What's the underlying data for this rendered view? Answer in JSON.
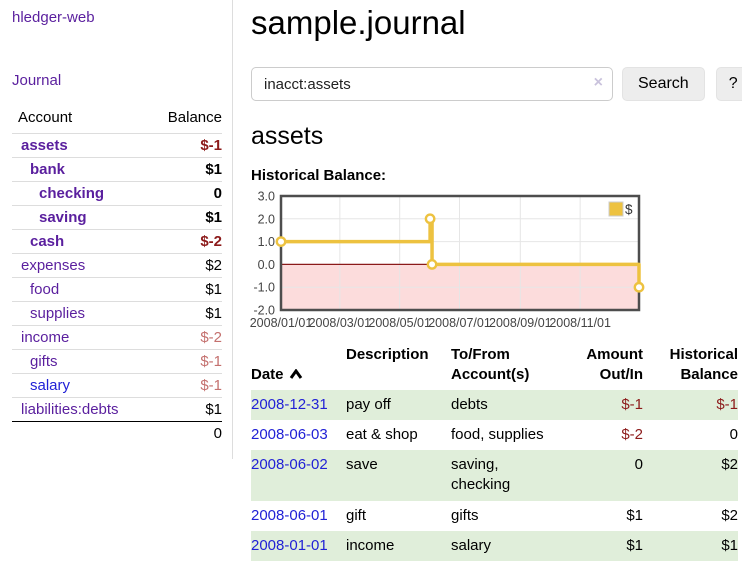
{
  "app": {
    "brand": "hledger-web",
    "nav_journal": "Journal"
  },
  "colors": {
    "link_purple": "#5a1f9e",
    "link_blue": "#2121d6",
    "negative_strong": "#8c1a1a",
    "negative_soft": "#c4706e",
    "row_stripe_green": "#e0eeda"
  },
  "icons": {
    "clear_search": "×",
    "sort_ascending": "chevron-up",
    "legend_swatch": "gold-square"
  },
  "sidebar": {
    "header": {
      "account": "Account",
      "balance": "Balance"
    },
    "accounts": [
      {
        "name": "assets",
        "level": 0,
        "bold": true,
        "balance": "$-1",
        "balance_style": "neg-strong"
      },
      {
        "name": "bank",
        "level": 1,
        "bold": true,
        "balance": "$1",
        "balance_style": ""
      },
      {
        "name": "checking",
        "level": 2,
        "bold": true,
        "balance": "0",
        "balance_style": ""
      },
      {
        "name": "saving",
        "level": 2,
        "bold": true,
        "balance": "$1",
        "balance_style": ""
      },
      {
        "name": "cash",
        "level": 1,
        "bold": true,
        "balance": "$-2",
        "balance_style": "neg-strong"
      },
      {
        "name": "expenses",
        "level": 0,
        "bold": false,
        "balance": "$2",
        "balance_style": ""
      },
      {
        "name": "food",
        "level": 1,
        "bold": false,
        "balance": "$1",
        "balance_style": ""
      },
      {
        "name": "supplies",
        "level": 1,
        "bold": false,
        "balance": "$1",
        "balance_style": ""
      },
      {
        "name": "income",
        "level": 0,
        "bold": false,
        "balance": "$-2",
        "balance_style": "neg-soft"
      },
      {
        "name": "gifts",
        "level": 1,
        "bold": false,
        "balance": "$-1",
        "balance_style": "neg-soft"
      },
      {
        "name": "salary",
        "level": 1,
        "bold": false,
        "link_style": "blue",
        "balance": "$-1",
        "balance_style": "neg-soft"
      },
      {
        "name": "liabilities:debts",
        "level": 0,
        "bold": false,
        "balance": "$1",
        "balance_style": ""
      }
    ],
    "total": "0"
  },
  "header": {
    "title": "sample.journal"
  },
  "search": {
    "value": "inacct:assets",
    "clear_icon": "×",
    "button": "Search",
    "help_button": "?"
  },
  "account_page": {
    "title": "assets",
    "chart_label": "Historical Balance:"
  },
  "chart_data": {
    "type": "line",
    "style": "step",
    "title": "Historical Balance",
    "xlabel": "",
    "ylabel": "",
    "xlim": [
      0,
      365
    ],
    "ylim": [
      -2,
      3
    ],
    "grid": true,
    "legend_position": "top-right",
    "series": [
      {
        "name": "$",
        "color": "#edc240",
        "points": [
          {
            "date": "2008/01/01",
            "x": 0,
            "y": 1
          },
          {
            "date": "2008/06/01",
            "x": 152,
            "y": 2
          },
          {
            "date": "2008/06/03",
            "x": 154,
            "y": 0
          },
          {
            "date": "2008/12/31",
            "x": 365,
            "y": -1
          }
        ]
      }
    ],
    "yticks": [
      {
        "v": 3,
        "label": "3.0"
      },
      {
        "v": 2,
        "label": "2.0"
      },
      {
        "v": 1,
        "label": "1.0"
      },
      {
        "v": 0,
        "label": "0.0"
      },
      {
        "v": -1,
        "label": "-1.0"
      },
      {
        "v": -2,
        "label": "-2.0"
      }
    ],
    "xticks": [
      {
        "v": 0,
        "label": "2008/01/01"
      },
      {
        "v": 60,
        "label": "2008/03/01"
      },
      {
        "v": 121,
        "label": "2008/05/01"
      },
      {
        "v": 182,
        "label": "2008/07/01"
      },
      {
        "v": 244,
        "label": "2008/09/01"
      },
      {
        "v": 305,
        "label": "2008/11/01"
      }
    ],
    "negative_region_color": "#fcdcdc",
    "zero_line_color": "#8b1a1a",
    "border_color": "#4d4d4d",
    "gridline_color": "#e6e6e6",
    "tick_label_color": "#444444"
  },
  "register": {
    "columns": [
      "Date",
      "Description",
      "To/From\nAccount(s)",
      "Amount\nOut/In",
      "Historical\nBalance"
    ],
    "rows": [
      {
        "date": "2008-12-31",
        "description": "pay off",
        "accounts": "debts",
        "amount": "$-1",
        "balance": "$-1"
      },
      {
        "date": "2008-06-03",
        "description": "eat & shop",
        "accounts": "food, supplies",
        "amount": "$-2",
        "balance": "0"
      },
      {
        "date": "2008-06-02",
        "description": "save",
        "accounts": "saving,\nchecking",
        "amount": "0",
        "balance": "$2"
      },
      {
        "date": "2008-06-01",
        "description": "gift",
        "accounts": "gifts",
        "amount": "$1",
        "balance": "$2"
      },
      {
        "date": "2008-01-01",
        "description": "income",
        "accounts": "salary",
        "amount": "$1",
        "balance": "$1"
      }
    ]
  }
}
